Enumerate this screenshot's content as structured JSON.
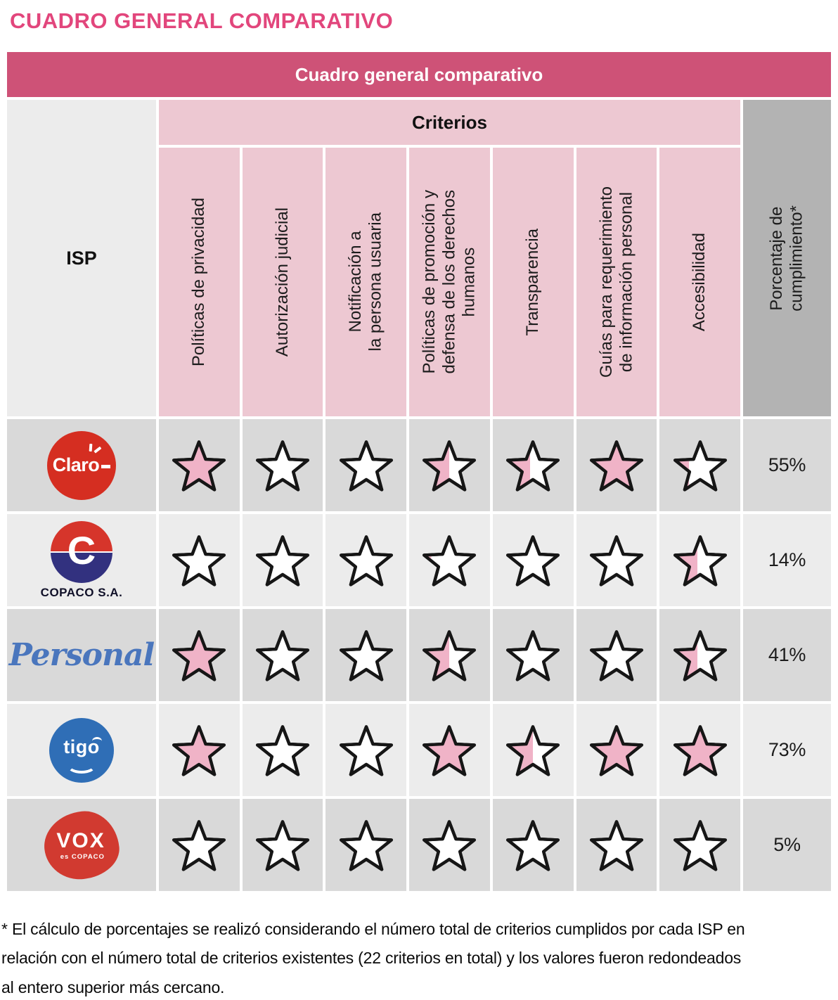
{
  "title": "CUADRO GENERAL COMPARATIVO",
  "table": {
    "header": "Cuadro general comparativo",
    "isp_label": "ISP",
    "criteria_label": "Criterios",
    "criteria": [
      "Políticas de privacidad",
      "Autorización judicial",
      "Notificación a\nla persona usuaria",
      "Políticas de promoción y\ndefensa de los derechos\nhumanos",
      "Transparencia",
      "Guías para requerimiento\nde información personal",
      "Accesibilidad"
    ],
    "percent_label": "Porcentaje de\ncumplimiento*",
    "rows": [
      {
        "isp": "Claro",
        "logo": "claro",
        "stars": [
          1,
          0,
          0,
          0.5,
          0.45,
          1,
          0.3
        ],
        "percent": "55%"
      },
      {
        "isp": "COPACO S.A.",
        "logo": "copaco",
        "stars": [
          0,
          0,
          0,
          0.18,
          0,
          0,
          0.45
        ],
        "percent": "14%"
      },
      {
        "isp": "Personal",
        "logo": "personal",
        "stars": [
          1,
          0,
          0,
          0.5,
          0,
          0,
          0.45
        ],
        "percent": "41%"
      },
      {
        "isp": "Tigo",
        "logo": "tigo",
        "stars": [
          1,
          0,
          0,
          1,
          0.5,
          1,
          1
        ],
        "percent": "73%"
      },
      {
        "isp": "VOX",
        "logo": "vox",
        "stars": [
          0,
          0,
          0,
          0.13,
          0,
          0,
          0
        ],
        "percent": "5%"
      }
    ]
  },
  "logos": {
    "claro": {
      "text": "Claro"
    },
    "copaco": {
      "letter": "C",
      "caption": "COPACO S.A."
    },
    "personal": {
      "text": "Personal"
    },
    "tigo": {
      "text": "tigo"
    },
    "vox": {
      "text": "VOX",
      "subtext": "es COPACO"
    }
  },
  "colors": {
    "title_pink": "#e2467c",
    "header_bar": "#ce5277",
    "criteria_pink": "#edc8d2",
    "percent_gray": "#b3b3b3",
    "row_dark": "#d9d9d9",
    "row_light": "#ececec",
    "star_fill": "#f0b3c7",
    "star_stroke": "#161616"
  },
  "footnote": "* El cálculo de porcentajes se realizó considerando el número total de criterios cumplidos por cada ISP en\nrelación con el número total de criterios existentes (22 criterios en total) y los valores fueron redondeados\nal entero superior más cercano.",
  "chart_data": {
    "type": "table",
    "title": "Cuadro general comparativo",
    "row_header": "ISP",
    "columns": [
      "Políticas de privacidad",
      "Autorización judicial",
      "Notificación a la persona usuaria",
      "Políticas de promoción y defensa de los derechos humanos",
      "Transparencia",
      "Guías para requerimiento de información personal",
      "Accesibilidad",
      "Porcentaje de cumplimiento*"
    ],
    "rows": [
      "Claro",
      "COPACO S.A.",
      "Personal",
      "Tigo",
      "VOX"
    ],
    "star_fill_fractions": [
      [
        1,
        0,
        0,
        0.5,
        0.45,
        1,
        0.3
      ],
      [
        0,
        0,
        0,
        0.18,
        0,
        0,
        0.45
      ],
      [
        1,
        0,
        0,
        0.5,
        0,
        0,
        0.45
      ],
      [
        1,
        0,
        0,
        1,
        0.5,
        1,
        1
      ],
      [
        0,
        0,
        0,
        0.13,
        0,
        0,
        0
      ]
    ],
    "percent_values": [
      "55%",
      "14%",
      "41%",
      "73%",
      "5%"
    ],
    "legend": "Each star shows the fraction of the criterion met (0 = empty star, 1 = fully pink star)"
  }
}
